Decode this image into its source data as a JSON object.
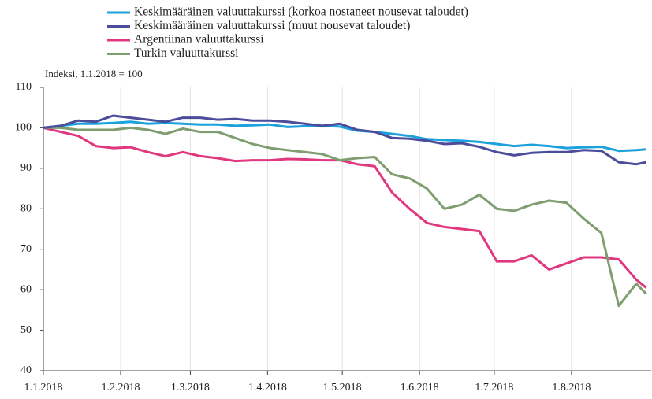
{
  "chart_data": {
    "type": "line",
    "y_label": "Indeksi, 1.1.2018 = 100",
    "x": [
      "1.1.2018",
      "8.1.2018",
      "15.1.2018",
      "22.1.2018",
      "29.1.2018",
      "5.2.2018",
      "12.2.2018",
      "19.2.2018",
      "26.2.2018",
      "5.3.2018",
      "12.3.2018",
      "19.3.2018",
      "26.3.2018",
      "2.4.2018",
      "9.4.2018",
      "16.4.2018",
      "23.4.2018",
      "30.4.2018",
      "7.5.2018",
      "14.5.2018",
      "21.5.2018",
      "28.5.2018",
      "4.6.2018",
      "11.6.2018",
      "18.6.2018",
      "25.6.2018",
      "2.7.2018",
      "9.7.2018",
      "16.7.2018",
      "23.7.2018",
      "30.7.2018",
      "6.8.2018",
      "13.8.2018",
      "20.8.2018",
      "27.8.2018",
      "31.8.2018"
    ],
    "series": [
      {
        "name": "Keskimääräinen valuuttakurssi (korkoa nostaneet nousevat taloudet)",
        "color": "#1ba1dc",
        "values": [
          100,
          100.5,
          101,
          101,
          101.2,
          101.5,
          101,
          101.2,
          101,
          100.8,
          100.8,
          100.5,
          100.6,
          100.8,
          100.2,
          100.4,
          100.5,
          100.3,
          99.3,
          99,
          98.5,
          98,
          97.2,
          97,
          96.8,
          96.5,
          96,
          95.5,
          95.8,
          95.5,
          95,
          95.2,
          95.3,
          94.3,
          94.5,
          94.7
        ]
      },
      {
        "name": "Keskimääräinen valuuttakurssi (muut nousevat taloudet)",
        "color": "#4b4c9a",
        "values": [
          100,
          100.5,
          101.8,
          101.5,
          103,
          102.5,
          102,
          101.5,
          102.5,
          102.5,
          102,
          102.2,
          101.8,
          101.8,
          101.5,
          101,
          100.5,
          101,
          99.5,
          99,
          97.5,
          97.3,
          96.8,
          96,
          96.2,
          95.3,
          94,
          93.2,
          93.8,
          94,
          94,
          94.5,
          94.3,
          91.5,
          91,
          91.5
        ]
      },
      {
        "name": "Argentiinan valuuttakurssi",
        "color": "#e0377f",
        "values": [
          100,
          99,
          98,
          95.5,
          95,
          95.2,
          94,
          93,
          94,
          93,
          92.5,
          91.8,
          92,
          92,
          92.3,
          92.2,
          92,
          92,
          91,
          90.5,
          84,
          80,
          76.5,
          75.5,
          75,
          74.5,
          67,
          67,
          68.5,
          65,
          66.5,
          68,
          68,
          67.5,
          62.5,
          60.5
        ]
      },
      {
        "name": "Turkin valuuttakurssi",
        "color": "#7f9e70",
        "values": [
          100,
          100,
          99.5,
          99.5,
          99.5,
          100,
          99.5,
          98.5,
          99.8,
          99,
          99,
          97.5,
          96,
          95,
          94.5,
          94,
          93.5,
          92,
          92.5,
          92.8,
          88.5,
          87.5,
          85,
          80,
          81,
          83.5,
          80,
          79.5,
          81,
          82,
          81.5,
          77.5,
          74,
          56,
          61.5,
          59
        ]
      }
    ],
    "xlim": [
      "1.1.2018",
      "2.9.2018"
    ],
    "xticks": [
      "1.1.2018",
      "1.2.2018",
      "1.3.2018",
      "1.4.2018",
      "1.5.2018",
      "1.6.2018",
      "1.7.2018",
      "1.8.2018"
    ],
    "ylim": [
      40,
      110
    ],
    "yticks": [
      40,
      50,
      60,
      70,
      80,
      90,
      100,
      110
    ],
    "grid": "x"
  }
}
